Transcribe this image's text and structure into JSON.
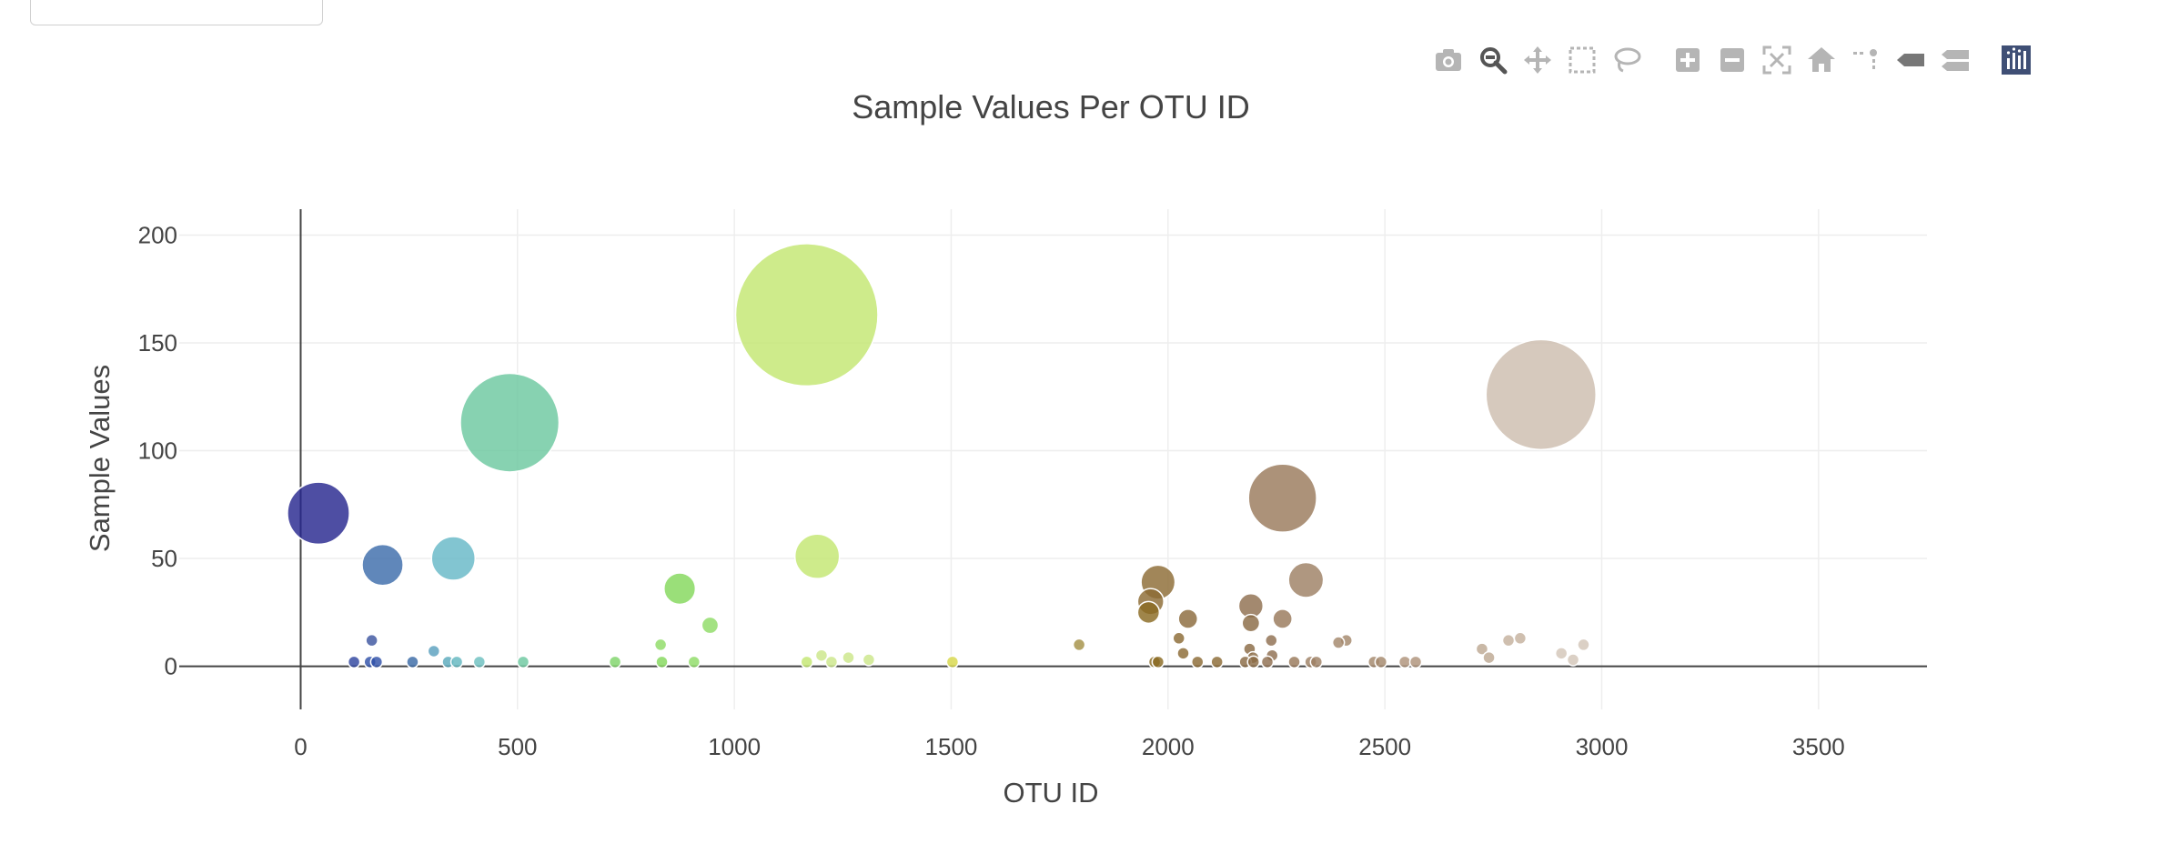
{
  "modebar": {
    "buttons": [
      "camera-icon",
      "zoom-icon",
      "pan-icon",
      "box-select-icon",
      "lasso-icon",
      "zoom-in-icon",
      "zoom-out-icon",
      "autoscale-icon",
      "reset-axes-icon",
      "spike-lines-icon",
      "hover-closest-icon",
      "hover-compare-icon",
      "plotly-logo-icon"
    ],
    "active": "zoom-icon"
  },
  "chart_data": {
    "type": "scatter",
    "title": "Sample Values Per OTU ID",
    "xlabel": "OTU ID",
    "ylabel": "Sample Values",
    "xlim": [
      -280,
      3750
    ],
    "ylim": [
      -20,
      212
    ],
    "xticks": [
      0,
      500,
      1000,
      1500,
      2000,
      2500,
      3000,
      3500
    ],
    "yticks": [
      0,
      50,
      100,
      150,
      200
    ],
    "grid": true,
    "legend": "none",
    "points": [
      {
        "x": 41,
        "y": 71,
        "color": "#27278f"
      },
      {
        "x": 189,
        "y": 47,
        "color": "#3d6cab"
      },
      {
        "x": 352,
        "y": 50,
        "color": "#67b8c7"
      },
      {
        "x": 482,
        "y": 113,
        "color": "#6cc8a0"
      },
      {
        "x": 874,
        "y": 36,
        "color": "#84d85c"
      },
      {
        "x": 944,
        "y": 19,
        "color": "#8fdc66"
      },
      {
        "x": 830,
        "y": 10,
        "color": "#8fdc66"
      },
      {
        "x": 1167,
        "y": 163,
        "color": "#c3e672"
      },
      {
        "x": 1191,
        "y": 51,
        "color": "#c3e672"
      },
      {
        "x": 1795,
        "y": 10,
        "color": "#a59147"
      },
      {
        "x": 1977,
        "y": 39,
        "color": "#8c6b35"
      },
      {
        "x": 1960,
        "y": 30,
        "color": "#8c6b35"
      },
      {
        "x": 1955,
        "y": 25,
        "color": "#8a6a22"
      },
      {
        "x": 2046,
        "y": 22,
        "color": "#8b6a3c"
      },
      {
        "x": 2025,
        "y": 13,
        "color": "#8b6a35"
      },
      {
        "x": 2264,
        "y": 78,
        "color": "#9a7a5c"
      },
      {
        "x": 2318,
        "y": 40,
        "color": "#9e8064"
      },
      {
        "x": 2264,
        "y": 22,
        "color": "#99795a"
      },
      {
        "x": 2191,
        "y": 28,
        "color": "#8f6f4f"
      },
      {
        "x": 2191,
        "y": 20,
        "color": "#8a6a44"
      },
      {
        "x": 2238,
        "y": 12,
        "color": "#8f6f50"
      },
      {
        "x": 2411,
        "y": 12,
        "color": "#a3876b"
      },
      {
        "x": 2393,
        "y": 11,
        "color": "#a3876b"
      },
      {
        "x": 2188,
        "y": 8,
        "color": "#8a6a44"
      },
      {
        "x": 2860,
        "y": 126,
        "color": "#cdbdae"
      },
      {
        "x": 2812,
        "y": 13,
        "color": "#c4b19e"
      },
      {
        "x": 2785,
        "y": 12,
        "color": "#c4b19e"
      },
      {
        "x": 2724,
        "y": 8,
        "color": "#bda892"
      },
      {
        "x": 2958,
        "y": 10,
        "color": "#d3c6b8"
      },
      {
        "x": 2907,
        "y": 6,
        "color": "#d3c6b8"
      },
      {
        "x": 164,
        "y": 12,
        "color": "#3d56a0"
      },
      {
        "x": 307,
        "y": 7,
        "color": "#5aa0be"
      },
      {
        "x": 1201,
        "y": 5,
        "color": "#cce68a"
      },
      {
        "x": 1263,
        "y": 4,
        "color": "#cce68a"
      },
      {
        "x": 1310,
        "y": 3,
        "color": "#cce68a"
      },
      {
        "x": 2035,
        "y": 6,
        "color": "#8b6a35"
      },
      {
        "x": 2240,
        "y": 5,
        "color": "#8f6f50"
      },
      {
        "x": 2196,
        "y": 4,
        "color": "#8a6a44"
      },
      {
        "x": 2740,
        "y": 4,
        "color": "#bda892"
      },
      {
        "x": 2934,
        "y": 3,
        "color": "#d3c6b8"
      },
      {
        "x": 123,
        "y": 2,
        "color": "#2f45a0"
      },
      {
        "x": 160,
        "y": 2,
        "color": "#3050a8"
      },
      {
        "x": 175,
        "y": 2,
        "color": "#3050a8"
      },
      {
        "x": 258,
        "y": 2,
        "color": "#3a6aa6"
      },
      {
        "x": 340,
        "y": 2,
        "color": "#5aaabc"
      },
      {
        "x": 360,
        "y": 2,
        "color": "#63b7c0"
      },
      {
        "x": 412,
        "y": 2,
        "color": "#6cc0c0"
      },
      {
        "x": 513,
        "y": 2,
        "color": "#6cc8a0"
      },
      {
        "x": 725,
        "y": 2,
        "color": "#7fd46a"
      },
      {
        "x": 833,
        "y": 2,
        "color": "#84d85c"
      },
      {
        "x": 907,
        "y": 2,
        "color": "#8fdc66"
      },
      {
        "x": 1167,
        "y": 2,
        "color": "#c3e672"
      },
      {
        "x": 1224,
        "y": 2,
        "color": "#cce68a"
      },
      {
        "x": 1503,
        "y": 2,
        "color": "#d8d84a"
      },
      {
        "x": 1969,
        "y": 2,
        "color": "#8a6a22"
      },
      {
        "x": 1977,
        "y": 2,
        "color": "#8a6a22"
      },
      {
        "x": 2068,
        "y": 2,
        "color": "#8b6a35"
      },
      {
        "x": 2113,
        "y": 2,
        "color": "#8b6a35"
      },
      {
        "x": 2178,
        "y": 2,
        "color": "#8a6a44"
      },
      {
        "x": 2197,
        "y": 2,
        "color": "#8a6a44"
      },
      {
        "x": 2229,
        "y": 2,
        "color": "#8f6f50"
      },
      {
        "x": 2291,
        "y": 2,
        "color": "#99795a"
      },
      {
        "x": 2329,
        "y": 2,
        "color": "#9e8064"
      },
      {
        "x": 2342,
        "y": 2,
        "color": "#9e8064"
      },
      {
        "x": 2475,
        "y": 2,
        "color": "#a3876b"
      },
      {
        "x": 2491,
        "y": 2,
        "color": "#a3876b"
      },
      {
        "x": 2546,
        "y": 2,
        "color": "#ae937a"
      },
      {
        "x": 2571,
        "y": 2,
        "color": "#ae937a"
      }
    ]
  }
}
